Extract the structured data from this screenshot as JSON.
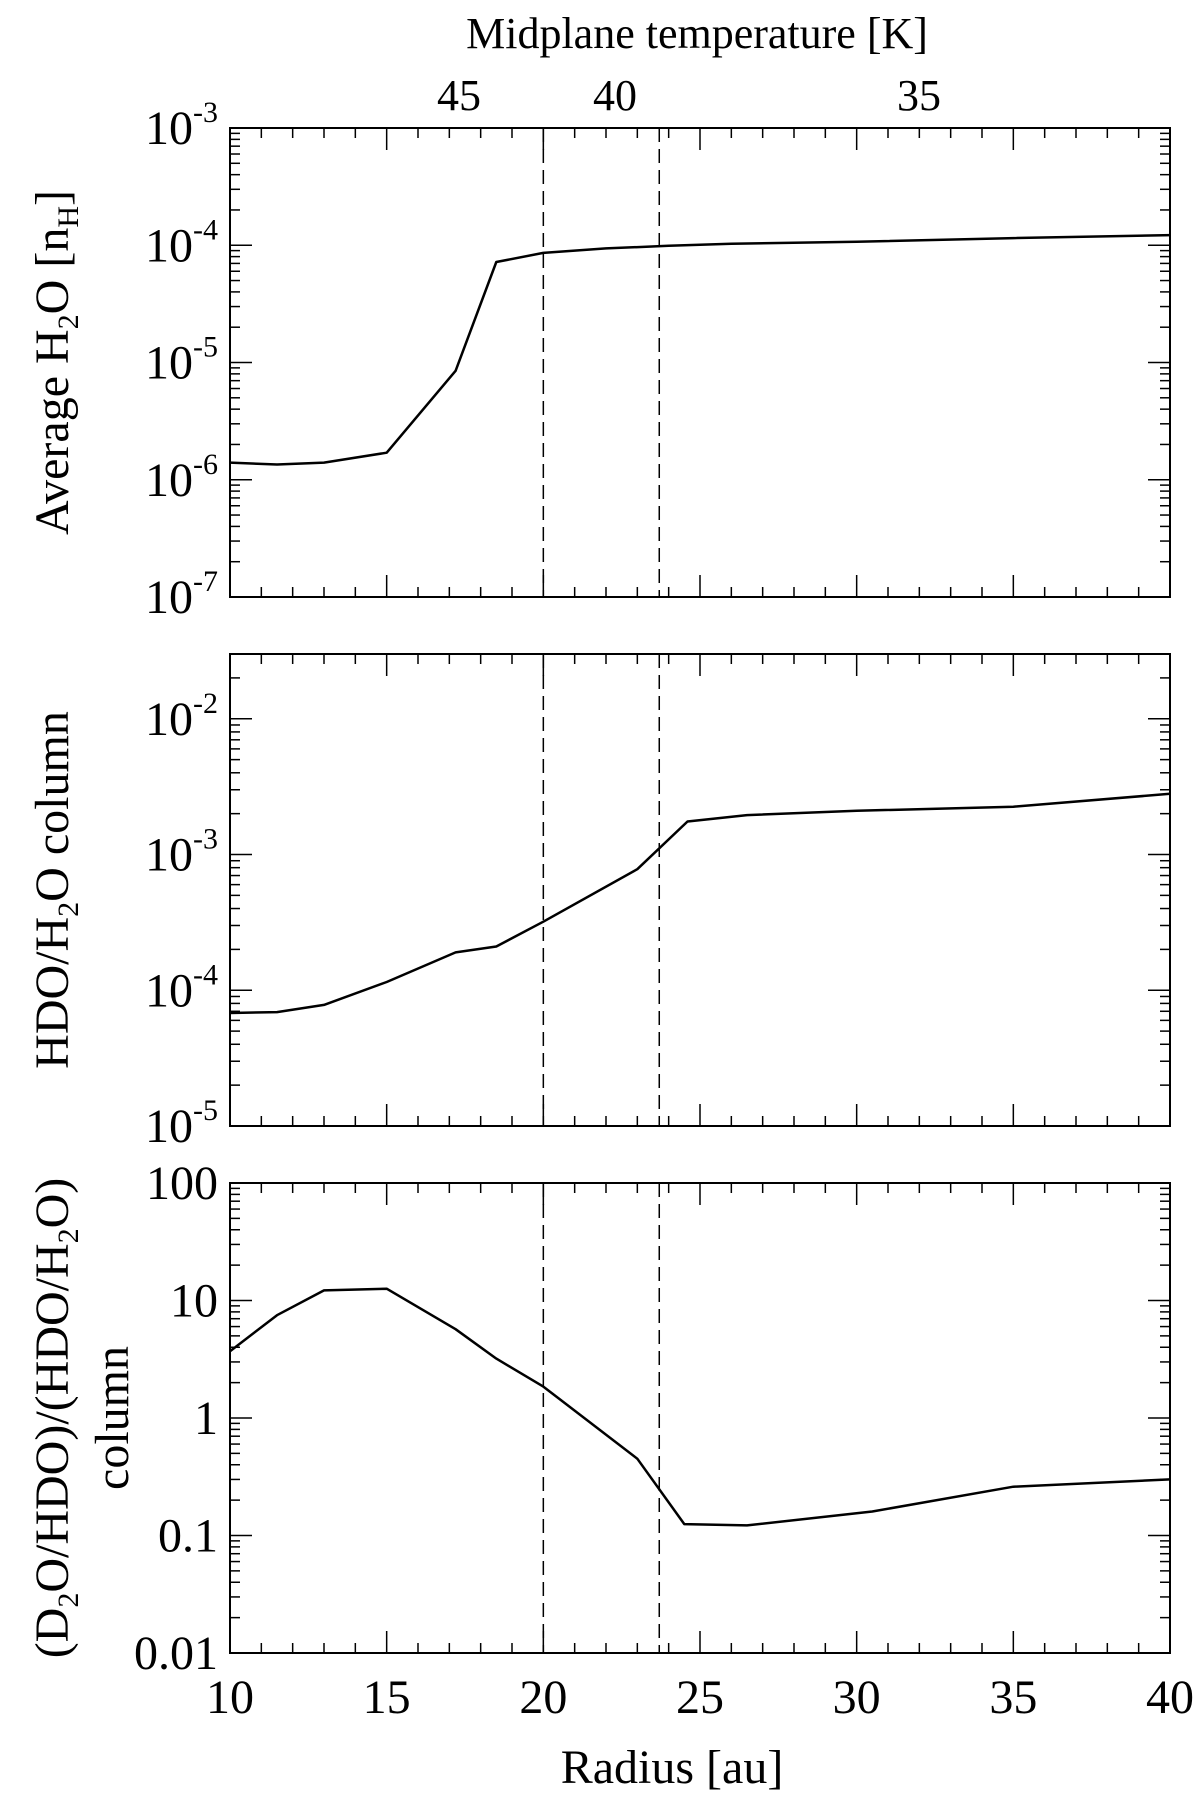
{
  "figure": {
    "top_axis_title": "Midplane temperature [K]",
    "x_axis_title": "Radius [au]",
    "x_ticks": [
      "10",
      "15",
      "20",
      "25",
      "30",
      "35",
      "40"
    ],
    "top_ticks": [
      "45",
      "40",
      "35"
    ]
  },
  "chart_data": [
    {
      "type": "line",
      "panel": "top",
      "ylabel": {
        "pre": "Average H",
        "sub": "2",
        "post": "O [n",
        "sub2": "H",
        "end": "]"
      },
      "yscale": "log",
      "xlim": [
        10,
        40
      ],
      "ylim": [
        1e-07,
        0.001
      ],
      "y_ticks": [
        {
          "value": 0.001,
          "base": "10",
          "exp": "-3"
        },
        {
          "value": 0.0001,
          "base": "10",
          "exp": "-4"
        },
        {
          "value": 1e-05,
          "base": "10",
          "exp": "-5"
        },
        {
          "value": 1e-06,
          "base": "10",
          "exp": "-6"
        },
        {
          "value": 1e-07,
          "base": "10",
          "exp": "-7"
        }
      ],
      "series": [
        {
          "x": [
            10,
            11.5,
            13,
            15,
            17.2,
            18.5,
            20,
            22,
            24,
            26,
            30,
            35,
            40
          ],
          "y": [
            1.4e-06,
            1.35e-06,
            1.4e-06,
            1.7e-06,
            8.5e-06,
            7.2e-05,
            8.6e-05,
            9.4e-05,
            9.9e-05,
            0.000103,
            0.000107,
            0.000115,
            0.000122
          ]
        }
      ],
      "vlines": [
        20,
        23.7
      ]
    },
    {
      "type": "line",
      "panel": "middle",
      "ylabel": {
        "pre": "HDO/H",
        "sub": "2",
        "post": "O column"
      },
      "yscale": "log",
      "xlim": [
        10,
        40
      ],
      "ylim": [
        1e-05,
        0.03
      ],
      "y_ticks": [
        {
          "value": 0.01,
          "base": "10",
          "exp": "-2"
        },
        {
          "value": 0.001,
          "base": "10",
          "exp": "-3"
        },
        {
          "value": 0.0001,
          "base": "10",
          "exp": "-4"
        },
        {
          "value": 1e-05,
          "base": "10",
          "exp": "-5"
        }
      ],
      "series": [
        {
          "x": [
            10,
            11.5,
            13,
            15,
            17.2,
            18.5,
            20,
            23,
            24.6,
            26.5,
            30,
            35,
            40
          ],
          "y": [
            6.8e-05,
            6.9e-05,
            7.8e-05,
            0.000115,
            0.00019,
            0.00021,
            0.00032,
            0.00078,
            0.00175,
            0.00195,
            0.0021,
            0.00225,
            0.0028
          ]
        }
      ],
      "vlines": [
        20,
        23.7
      ]
    },
    {
      "type": "line",
      "panel": "bottom",
      "ylabel": {
        "line1": {
          "p1": "(D",
          "s1": "2",
          "p2": "O/HDO)/(HDO/H",
          "s2": "2",
          "p3": "O)"
        },
        "line2": "column"
      },
      "yscale": "log",
      "xlim": [
        10,
        40
      ],
      "ylim": [
        0.01,
        100
      ],
      "y_ticks": [
        {
          "value": 100,
          "label": "100"
        },
        {
          "value": 10,
          "label": "10"
        },
        {
          "value": 1,
          "label": "1"
        },
        {
          "value": 0.1,
          "label": "0.1"
        },
        {
          "value": 0.01,
          "label": "0.01"
        }
      ],
      "series": [
        {
          "x": [
            10,
            11.5,
            13,
            15,
            17.2,
            18.5,
            20,
            23,
            24.5,
            26.5,
            30.5,
            35,
            40
          ],
          "y": [
            3.7,
            7.5,
            12.2,
            12.6,
            5.7,
            3.2,
            1.85,
            0.45,
            0.125,
            0.122,
            0.16,
            0.26,
            0.3
          ]
        }
      ],
      "vlines": [
        20,
        23.7
      ]
    }
  ]
}
